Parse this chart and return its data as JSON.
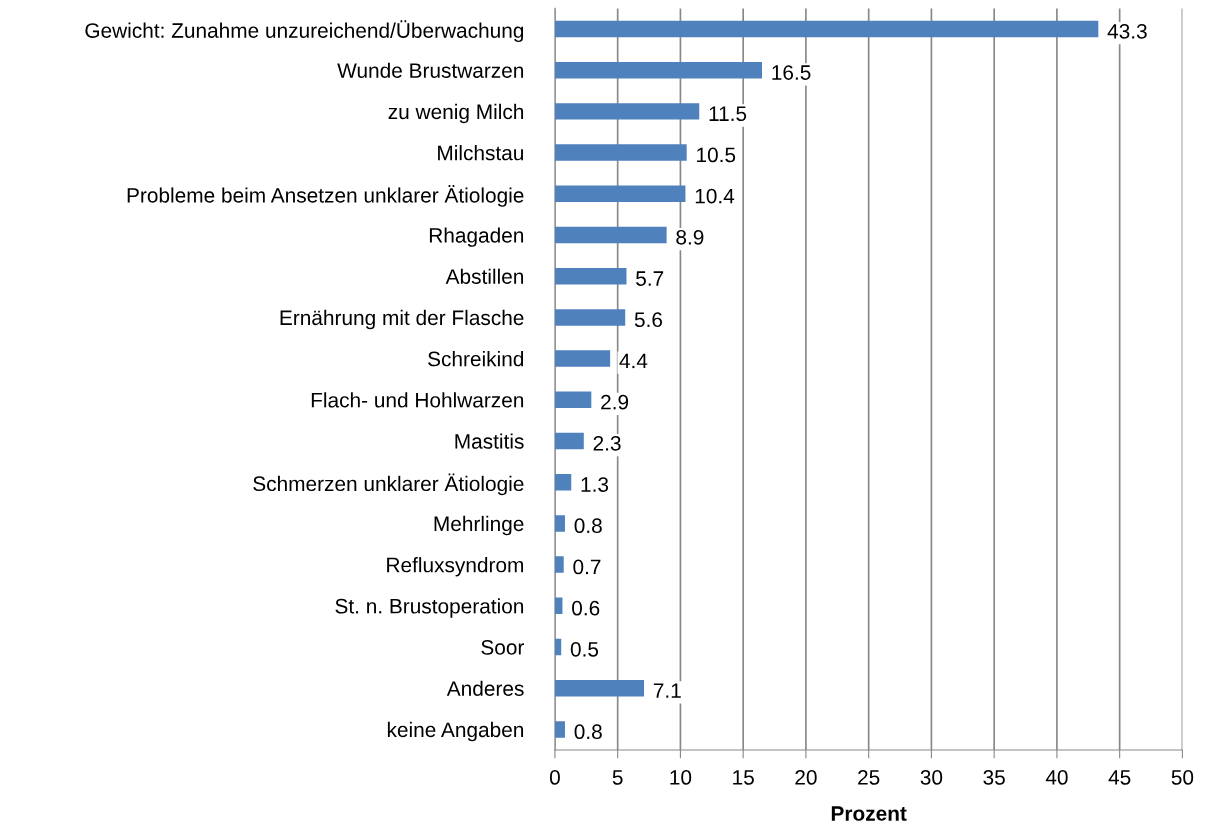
{
  "chart_data": {
    "type": "bar",
    "orientation": "horizontal",
    "xlabel": "Prozent",
    "categories": [
      "Gewicht: Zunahme unzureichend/Überwachung",
      "Wunde Brustwarzen",
      "zu wenig Milch",
      "Milchstau",
      "Probleme beim Ansetzen unklarer Ätiologie",
      "Rhagaden",
      "Abstillen",
      "Ernährung mit der Flasche",
      "Schreikind",
      "Flach- und Hohlwarzen",
      "Mastitis",
      "Schmerzen unklarer Ätiologie",
      "Mehrlinge",
      "Refluxsyndrom",
      "St. n. Brustoperation",
      "Soor",
      "Anderes",
      "keine Angaben"
    ],
    "values": [
      43.3,
      16.5,
      11.5,
      10.5,
      10.4,
      8.9,
      5.7,
      5.6,
      4.4,
      2.9,
      2.3,
      1.3,
      0.8,
      0.7,
      0.6,
      0.5,
      7.1,
      0.8
    ],
    "color": "#4f81bd",
    "xlim": [
      0,
      50
    ],
    "xticks": [
      0,
      5,
      10,
      15,
      20,
      25,
      30,
      35,
      40,
      45,
      50
    ],
    "grid": "x",
    "data_labels": true
  }
}
